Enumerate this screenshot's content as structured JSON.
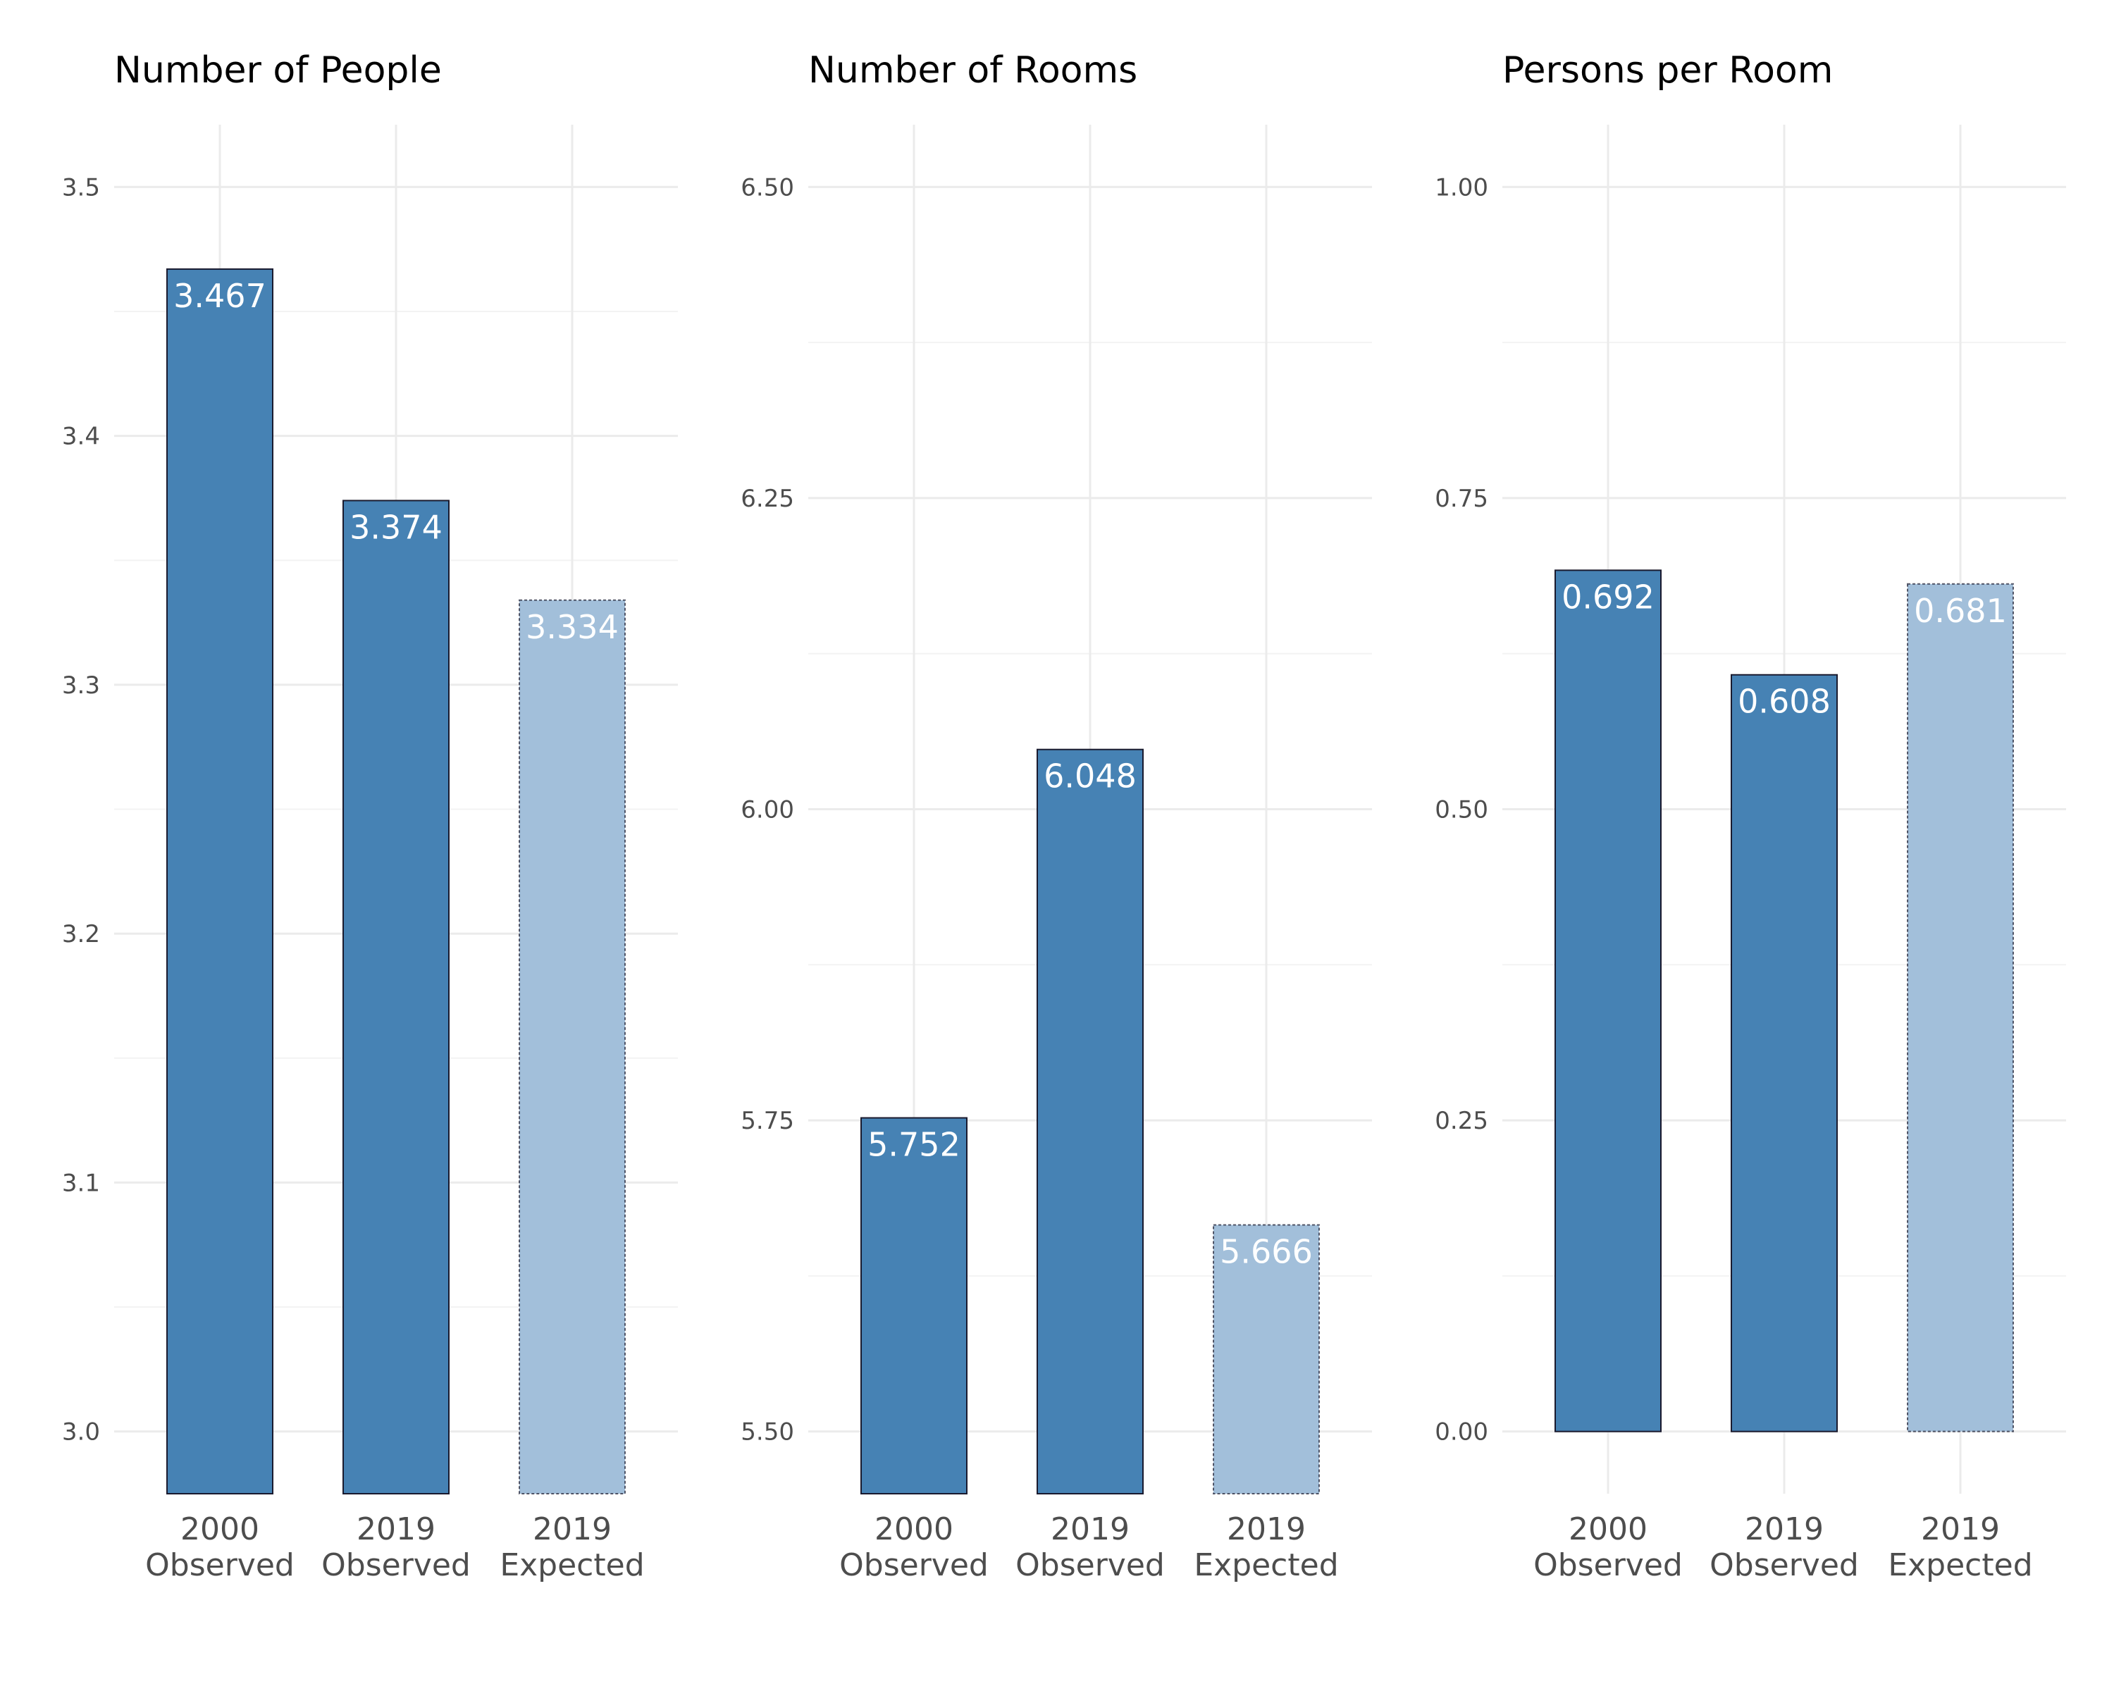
{
  "colors": {
    "observed_fill": "#4682b4",
    "expected_fill": "#a2bfda",
    "bar_outline": "#1a1a2e",
    "grid_major": "#ebebeb",
    "grid_minor": "#f3f3f3",
    "background": "#ffffff"
  },
  "chart_data": [
    {
      "type": "bar",
      "title": "Number of People",
      "xlabel": "",
      "ylabel": "",
      "categories": [
        {
          "line1": "2000",
          "line2": "Observed",
          "kind": "observed"
        },
        {
          "line1": "2019",
          "line2": "Observed",
          "kind": "observed"
        },
        {
          "line1": "2019",
          "line2": "Expected",
          "kind": "expected"
        }
      ],
      "values": [
        3.467,
        3.374,
        3.334
      ],
      "value_labels": [
        "3.467",
        "3.374",
        "3.334"
      ],
      "ylim": [
        2.975,
        3.525
      ],
      "yticks": [
        3.0,
        3.1,
        3.2,
        3.3,
        3.4,
        3.5
      ],
      "ytick_labels": [
        "3.0",
        "3.1",
        "3.2",
        "3.3",
        "3.4",
        "3.5"
      ],
      "grid": true,
      "legend": "none"
    },
    {
      "type": "bar",
      "title": "Number of Rooms",
      "xlabel": "",
      "ylabel": "",
      "categories": [
        {
          "line1": "2000",
          "line2": "Observed",
          "kind": "observed"
        },
        {
          "line1": "2019",
          "line2": "Observed",
          "kind": "observed"
        },
        {
          "line1": "2019",
          "line2": "Expected",
          "kind": "expected"
        }
      ],
      "values": [
        5.752,
        6.048,
        5.666
      ],
      "value_labels": [
        "5.752",
        "6.048",
        "5.666"
      ],
      "ylim": [
        5.45,
        6.55
      ],
      "yticks": [
        5.5,
        5.75,
        6.0,
        6.25,
        6.5
      ],
      "ytick_labels": [
        "5.50",
        "5.75",
        "6.00",
        "6.25",
        "6.50"
      ],
      "grid": true,
      "legend": "none"
    },
    {
      "type": "bar",
      "title": "Persons per Room",
      "xlabel": "",
      "ylabel": "",
      "categories": [
        {
          "line1": "2000",
          "line2": "Observed",
          "kind": "observed"
        },
        {
          "line1": "2019",
          "line2": "Observed",
          "kind": "observed"
        },
        {
          "line1": "2019",
          "line2": "Expected",
          "kind": "expected"
        }
      ],
      "values": [
        0.692,
        0.608,
        0.681
      ],
      "value_labels": [
        "0.692",
        "0.608",
        "0.681"
      ],
      "ylim": [
        -0.05,
        1.05
      ],
      "yticks": [
        0.0,
        0.25,
        0.5,
        0.75,
        1.0
      ],
      "ytick_labels": [
        "0.00",
        "0.25",
        "0.50",
        "0.75",
        "1.00"
      ],
      "grid": true,
      "legend": "none"
    }
  ]
}
